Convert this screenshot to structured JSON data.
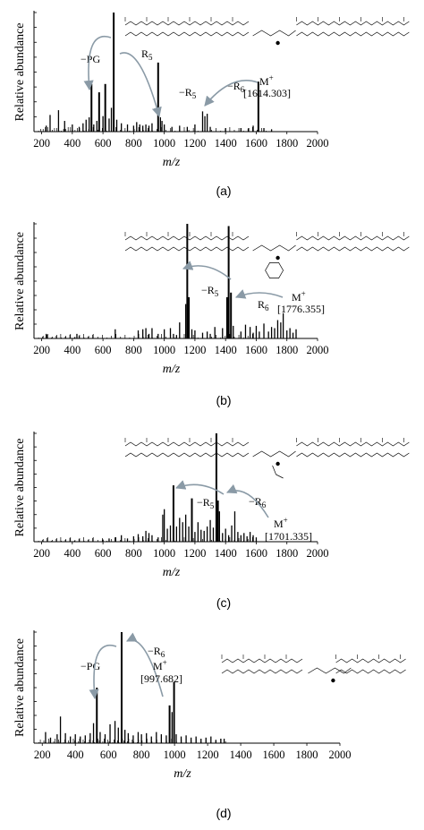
{
  "chart_data": [
    {
      "panel_label": "(a)",
      "type": "bar",
      "xlabel": "m/z",
      "ylabel": "Relative abundance",
      "xlim": [
        150,
        2000
      ],
      "xticks": [
        200,
        400,
        600,
        800,
        1000,
        1200,
        1400,
        1600,
        1800,
        2000
      ],
      "peaks": {
        "x": [
          230,
          255,
          310,
          350,
          400,
          445,
          470,
          490,
          510,
          525,
          540,
          560,
          575,
          600,
          615,
          640,
          655,
          670,
          690,
          720,
          760,
          800,
          820,
          840,
          860,
          880,
          900,
          920,
          960,
          975,
          985,
          1000,
          1050,
          1100,
          1150,
          1200,
          1250,
          1265,
          1280,
          1300,
          1400,
          1500,
          1550,
          1580,
          1614,
          1650,
          1700
        ],
        "y": [
          5,
          14,
          18,
          9,
          6,
          4,
          7,
          10,
          12,
          40,
          6,
          9,
          33,
          13,
          40,
          11,
          20,
          100,
          10,
          7,
          6,
          5,
          8,
          6,
          5,
          6,
          5,
          7,
          58,
          12,
          9,
          6,
          4,
          5,
          4,
          6,
          17,
          13,
          15,
          4,
          3,
          3,
          3,
          5,
          42,
          3,
          2
        ]
      },
      "annotations": [
        {
          "text": "−PG",
          "from_mz": 670,
          "to_mz": 525
        },
        {
          "text": "R",
          "sub": "5",
          "from_mz": 670,
          "to_mz": 975
        },
        {
          "text": "−R",
          "sub": "5"
        },
        {
          "text": "−R",
          "sub": "6",
          "from_mz": 1614,
          "to_mz": 1265
        },
        {
          "text": "M",
          "sup": "+"
        },
        {
          "text": "[1614.303]"
        }
      ]
    },
    {
      "panel_label": "(b)",
      "type": "bar",
      "xlabel": "m/z",
      "ylabel": "Relative abundance",
      "xlim": [
        150,
        2000
      ],
      "xticks": [
        200,
        400,
        600,
        800,
        1000,
        1200,
        1400,
        1600,
        1800,
        2000
      ],
      "peaks": {
        "x": [
          230,
          430,
          680,
          830,
          860,
          880,
          900,
          920,
          960,
          1000,
          1040,
          1060,
          1080,
          1100,
          1140,
          1150,
          1160,
          1180,
          1200,
          1250,
          1280,
          1300,
          1330,
          1380,
          1410,
          1420,
          1435,
          1450,
          1500,
          1530,
          1560,
          1580,
          1600,
          1620,
          1650,
          1680,
          1700,
          1720,
          1740,
          1760,
          1776,
          1800,
          1820,
          1840,
          1860
        ],
        "y": [
          4,
          4,
          8,
          7,
          8,
          9,
          4,
          9,
          4,
          8,
          9,
          4,
          3,
          14,
          30,
          100,
          36,
          8,
          7,
          5,
          6,
          4,
          10,
          9,
          36,
          98,
          40,
          11,
          6,
          12,
          10,
          5,
          11,
          6,
          13,
          6,
          10,
          9,
          16,
          14,
          22,
          7,
          9,
          5,
          8
        ]
      },
      "annotations": [
        {
          "text": "−R",
          "sub": "5",
          "from_mz": 1420,
          "to_mz": 1150
        },
        {
          "text": "R",
          "sub": "6",
          "from_mz": 1776,
          "to_mz": 1420
        },
        {
          "text": "M",
          "sup": "+"
        },
        {
          "text": "[1776.355]"
        }
      ]
    },
    {
      "panel_label": "(c)",
      "type": "bar",
      "xlabel": "m/z",
      "ylabel": "Relative abundance",
      "xlim": [
        150,
        2000
      ],
      "xticks": [
        200,
        400,
        600,
        800,
        1000,
        1200,
        1400,
        1600,
        1800,
        2000
      ],
      "peaks": {
        "x": [
          600,
          640,
          680,
          720,
          760,
          800,
          830,
          860,
          880,
          900,
          920,
          960,
          990,
          1000,
          1020,
          1040,
          1060,
          1080,
          1100,
          1120,
          1140,
          1160,
          1180,
          1200,
          1220,
          1240,
          1260,
          1280,
          1300,
          1320,
          1340,
          1350,
          1360,
          1380,
          1400,
          1420,
          1440,
          1460,
          1480,
          1500,
          1520,
          1540,
          1560,
          1580,
          1600
        ],
        "y": [
          2,
          3,
          4,
          6,
          3,
          5,
          7,
          5,
          10,
          8,
          6,
          4,
          25,
          30,
          12,
          15,
          52,
          14,
          22,
          18,
          25,
          14,
          40,
          9,
          18,
          11,
          10,
          14,
          20,
          13,
          100,
          38,
          28,
          8,
          12,
          6,
          15,
          28,
          9,
          6,
          8,
          5,
          9,
          6,
          4
        ]
      },
      "annotations": [
        {
          "text": "−R",
          "sub": "5",
          "from_mz": 1340,
          "to_mz": 1060
        },
        {
          "text": "−R",
          "sub": "6",
          "from_mz": 1701,
          "to_mz": 1340
        },
        {
          "text": "M",
          "sup": "+"
        },
        {
          "text": "[1701.335]"
        }
      ]
    },
    {
      "panel_label": "(d)",
      "type": "bar",
      "xlabel": "m/z",
      "ylabel": "Relative abundance",
      "xlim": [
        150,
        2000
      ],
      "xticks": [
        200,
        400,
        600,
        800,
        1000,
        1200,
        1400,
        1600,
        1800,
        2000
      ],
      "peaks": {
        "x": [
          220,
          250,
          290,
          310,
          340,
          370,
          400,
          430,
          460,
          490,
          510,
          530,
          550,
          580,
          610,
          640,
          660,
          680,
          700,
          720,
          750,
          780,
          800,
          830,
          860,
          890,
          920,
          950,
          970,
          985,
          997,
          1010,
          1040,
          1070,
          1100,
          1130,
          1160,
          1190,
          1220,
          1250,
          1280,
          1300
        ],
        "y": [
          10,
          5,
          8,
          24,
          9,
          6,
          8,
          6,
          7,
          9,
          18,
          50,
          10,
          8,
          17,
          20,
          14,
          100,
          12,
          9,
          7,
          10,
          8,
          9,
          6,
          10,
          8,
          7,
          34,
          28,
          55,
          8,
          6,
          7,
          5,
          6,
          4,
          5,
          6,
          3,
          4,
          4
        ]
      },
      "annotations": [
        {
          "text": "−PG",
          "from_mz": 680,
          "to_mz": 530
        },
        {
          "text": "−R",
          "sub": "6",
          "from_mz": 997,
          "to_mz": 680
        },
        {
          "text": "M",
          "sup": "+"
        },
        {
          "text": "[997.682]"
        }
      ]
    }
  ]
}
